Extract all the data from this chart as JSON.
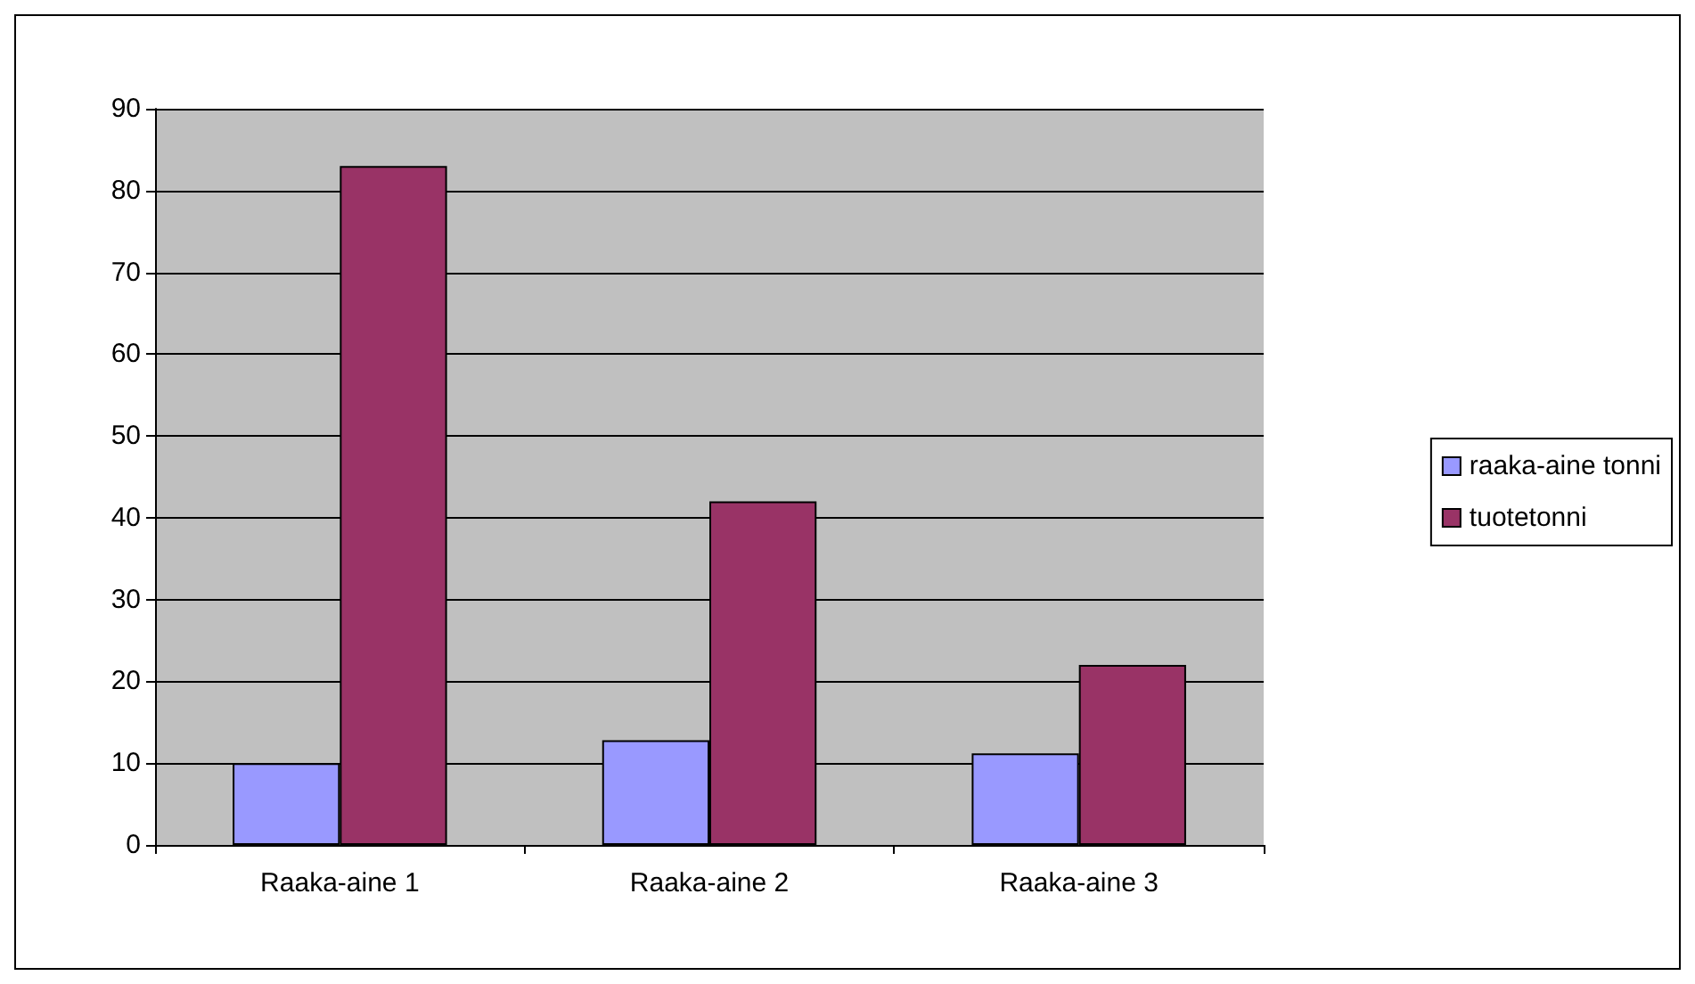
{
  "chart_data": {
    "type": "bar",
    "categories": [
      "Raaka-aine 1",
      "Raaka-aine 2",
      "Raaka-aine 3"
    ],
    "series": [
      {
        "name": "raaka-aine tonni",
        "color": "#9999ff",
        "values": [
          10,
          12.8,
          11.2
        ]
      },
      {
        "name": "tuotetonni",
        "color": "#993366",
        "values": [
          83,
          42,
          22
        ]
      }
    ],
    "ylim": [
      0,
      90
    ],
    "yticks": [
      0,
      10,
      20,
      30,
      40,
      50,
      60,
      70,
      80,
      90
    ],
    "grid": "y",
    "legend": "right"
  }
}
